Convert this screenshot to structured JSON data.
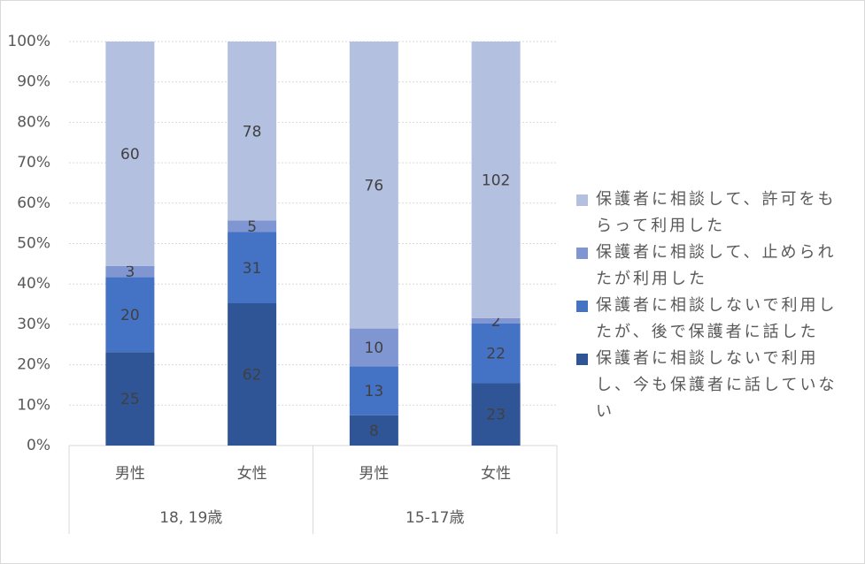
{
  "chart_data": {
    "type": "bar",
    "stacked": "percent",
    "groups": [
      {
        "name": "18, 19歳",
        "categories": [
          "男性",
          "女性"
        ]
      },
      {
        "name": "15-17歳",
        "categories": [
          "男性",
          "女性"
        ]
      }
    ],
    "series": [
      {
        "name": "保護者に相談しないで利用し、今も保護者に話していない",
        "color": "#2f5597",
        "values": [
          25,
          62,
          8,
          23
        ]
      },
      {
        "name": "保護者に相談しないで利用したが、後で保護者に話した",
        "color": "#4472c4",
        "values": [
          20,
          31,
          13,
          22
        ]
      },
      {
        "name": "保護者に相談して、止められたが利用した",
        "color": "#7f96d2",
        "values": [
          3,
          5,
          10,
          2
        ]
      },
      {
        "name": "保護者に相談して、許可をもらって利用した",
        "color": "#b4c0e0",
        "values": [
          60,
          78,
          76,
          102
        ]
      }
    ],
    "ylim": [
      0,
      100
    ],
    "yticks": [
      {
        "value": 0,
        "label": "0%"
      },
      {
        "value": 10,
        "label": "10%"
      },
      {
        "value": 20,
        "label": "20%"
      },
      {
        "value": 30,
        "label": "30%"
      },
      {
        "value": 40,
        "label": "40%"
      },
      {
        "value": 50,
        "label": "50%"
      },
      {
        "value": 60,
        "label": "60%"
      },
      {
        "value": 70,
        "label": "70%"
      },
      {
        "value": 80,
        "label": "80%"
      },
      {
        "value": 90,
        "label": "90%"
      },
      {
        "value": 100,
        "label": "100%"
      }
    ],
    "grid": true
  }
}
